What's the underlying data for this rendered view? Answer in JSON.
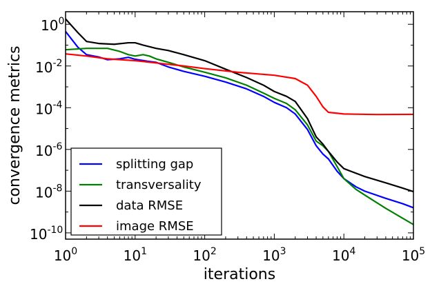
{
  "chart_data": {
    "type": "line",
    "title": "",
    "xlabel": "iterations",
    "ylabel": "convergence metrics",
    "xscale": "log",
    "yscale": "log",
    "xlim": [
      1,
      100000
    ],
    "ylim": [
      5e-11,
      4
    ],
    "grid": false,
    "legend_position": "lower-left",
    "xticks": [
      {
        "value": 1,
        "base": "10",
        "exp": "0"
      },
      {
        "value": 10,
        "base": "10",
        "exp": "1"
      },
      {
        "value": 100,
        "base": "10",
        "exp": "2"
      },
      {
        "value": 1000,
        "base": "10",
        "exp": "3"
      },
      {
        "value": 10000,
        "base": "10",
        "exp": "4"
      },
      {
        "value": 100000,
        "base": "10",
        "exp": "5"
      }
    ],
    "yticks": [
      {
        "value": 1,
        "base": "10",
        "exp": "0"
      },
      {
        "value": 0.01,
        "base": "10",
        "exp": "-2"
      },
      {
        "value": 0.0001,
        "base": "10",
        "exp": "-4"
      },
      {
        "value": 1e-06,
        "base": "10",
        "exp": "-6"
      },
      {
        "value": 1e-08,
        "base": "10",
        "exp": "-8"
      },
      {
        "value": 1e-10,
        "base": "10",
        "exp": "-10"
      }
    ],
    "series": [
      {
        "name": "splitting gap",
        "color": "#0000ff",
        "points": [
          [
            1,
            0.45
          ],
          [
            1.5,
            0.08
          ],
          [
            2,
            0.035
          ],
          [
            3,
            0.027
          ],
          [
            4,
            0.02
          ],
          [
            6,
            0.022
          ],
          [
            8,
            0.026
          ],
          [
            10,
            0.021
          ],
          [
            15,
            0.017
          ],
          [
            20,
            0.015
          ],
          [
            30,
            0.009
          ],
          [
            50,
            0.0055
          ],
          [
            100,
            0.0032
          ],
          [
            200,
            0.0017
          ],
          [
            400,
            0.0008
          ],
          [
            700,
            0.00035
          ],
          [
            1000,
            0.00018
          ],
          [
            1500,
            0.0001
          ],
          [
            2000,
            5e-05
          ],
          [
            3000,
            9e-06
          ],
          [
            4000,
            1.5e-06
          ],
          [
            5000,
            6e-07
          ],
          [
            6000,
            3.5e-07
          ],
          [
            8000,
            9e-08
          ],
          [
            10000,
            4e-08
          ],
          [
            15000,
            1.6e-08
          ],
          [
            20000,
            1e-08
          ],
          [
            40000,
            4.5e-09
          ],
          [
            70000,
            2.5e-09
          ],
          [
            100000,
            1.6e-09
          ]
        ]
      },
      {
        "name": "transversality",
        "color": "#008000",
        "points": [
          [
            1,
            0.06
          ],
          [
            2,
            0.07
          ],
          [
            4,
            0.07
          ],
          [
            6,
            0.05
          ],
          [
            8,
            0.035
          ],
          [
            10,
            0.03
          ],
          [
            13,
            0.035
          ],
          [
            16,
            0.03
          ],
          [
            20,
            0.022
          ],
          [
            30,
            0.015
          ],
          [
            50,
            0.009
          ],
          [
            100,
            0.005
          ],
          [
            200,
            0.0027
          ],
          [
            400,
            0.0012
          ],
          [
            700,
            0.0005
          ],
          [
            1000,
            0.00028
          ],
          [
            1500,
            0.00016
          ],
          [
            2000,
            8e-05
          ],
          [
            3000,
            1.5e-05
          ],
          [
            4000,
            2.5e-06
          ],
          [
            5000,
            1.5e-06
          ],
          [
            6000,
            8e-07
          ],
          [
            8000,
            1.5e-07
          ],
          [
            10000,
            4e-08
          ],
          [
            15000,
            1.2e-08
          ],
          [
            20000,
            6.5e-09
          ],
          [
            40000,
            1.5e-09
          ],
          [
            70000,
            5e-10
          ],
          [
            100000,
            2.5e-10
          ]
        ]
      },
      {
        "name": "data RMSE",
        "color": "#000000",
        "points": [
          [
            1,
            1.8
          ],
          [
            1.5,
            0.4
          ],
          [
            2,
            0.15
          ],
          [
            3,
            0.12
          ],
          [
            5,
            0.11
          ],
          [
            8,
            0.13
          ],
          [
            10,
            0.13
          ],
          [
            13,
            0.1
          ],
          [
            20,
            0.07
          ],
          [
            30,
            0.055
          ],
          [
            50,
            0.035
          ],
          [
            100,
            0.018
          ],
          [
            200,
            0.007
          ],
          [
            400,
            0.0028
          ],
          [
            700,
            0.0012
          ],
          [
            1000,
            0.0006
          ],
          [
            1500,
            0.00035
          ],
          [
            2000,
            0.0002
          ],
          [
            3000,
            3e-05
          ],
          [
            4000,
            4e-06
          ],
          [
            5000,
            1.8e-06
          ],
          [
            6000,
            8e-07
          ],
          [
            8000,
            2.5e-07
          ],
          [
            10000,
            1.2e-07
          ],
          [
            20000,
            5e-08
          ],
          [
            40000,
            2.5e-08
          ],
          [
            70000,
            1.4e-08
          ],
          [
            100000,
            9.5e-09
          ]
        ]
      },
      {
        "name": "image RMSE",
        "color": "#ff0000",
        "points": [
          [
            1,
            0.038
          ],
          [
            2,
            0.03
          ],
          [
            4,
            0.022
          ],
          [
            10,
            0.018
          ],
          [
            20,
            0.014
          ],
          [
            50,
            0.01
          ],
          [
            100,
            0.0075
          ],
          [
            300,
            0.005
          ],
          [
            1000,
            0.0036
          ],
          [
            2000,
            0.0025
          ],
          [
            3000,
            0.0012
          ],
          [
            4000,
            0.00035
          ],
          [
            5000,
            0.00011
          ],
          [
            6000,
            6e-05
          ],
          [
            10000,
            5e-05
          ],
          [
            30000,
            4.7e-05
          ],
          [
            100000,
            4.8e-05
          ]
        ]
      }
    ]
  }
}
